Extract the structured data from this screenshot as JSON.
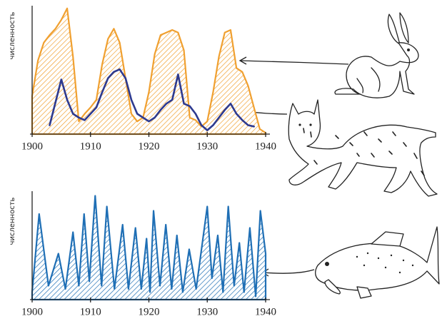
{
  "chart_data": [
    {
      "type": "area",
      "ylabel": "численность",
      "x": [
        1900,
        1901,
        1902,
        1903,
        1904,
        1905,
        1906,
        1907,
        1908,
        1909,
        1910,
        1911,
        1912,
        1913,
        1914,
        1915,
        1916,
        1917,
        1918,
        1919,
        1920,
        1921,
        1922,
        1923,
        1924,
        1925,
        1926,
        1927,
        1928,
        1929,
        1930,
        1931,
        1932,
        1933,
        1934,
        1935,
        1936,
        1937,
        1938,
        1939,
        1940
      ],
      "series": [
        {
          "type": "area",
          "color": "#f0a030",
          "values": [
            30,
            58,
            72,
            78,
            83,
            90,
            99,
            61,
            10,
            16,
            21,
            27,
            55,
            75,
            83,
            72,
            44,
            16,
            10,
            13,
            33,
            63,
            78,
            80,
            82,
            80,
            66,
            13,
            11,
            6,
            10,
            33,
            61,
            80,
            82,
            52,
            49,
            38,
            21,
            4,
            1
          ]
        },
        {
          "type": "line",
          "color": "#2e3a8f",
          "values": [
            null,
            null,
            null,
            7,
            25,
            43,
            27,
            16,
            13,
            11,
            16,
            21,
            33,
            44,
            49,
            51,
            44,
            27,
            16,
            13,
            10,
            13,
            19,
            24,
            27,
            47,
            24,
            22,
            16,
            7,
            3,
            7,
            13,
            19,
            24,
            16,
            11,
            7,
            6,
            null,
            null
          ]
        }
      ],
      "xlim": [
        1900,
        1940
      ],
      "xticks": [
        1900,
        1910,
        1920,
        1930,
        1940
      ],
      "ylim": [
        0,
        100
      ]
    },
    {
      "type": "area",
      "ylabel": "численность",
      "x": [
        1900,
        1901.2,
        1902.8,
        1904.5,
        1905.7,
        1907.0,
        1908.0,
        1908.9,
        1909.8,
        1910.8,
        1911.9,
        1912.8,
        1914.1,
        1915.5,
        1916.5,
        1917.7,
        1918.7,
        1919.6,
        1920.2,
        1920.8,
        1921.9,
        1922.9,
        1923.9,
        1924.8,
        1925.8,
        1926.9,
        1928.1,
        1930.0,
        1930.8,
        1931.8,
        1932.7,
        1933.6,
        1934.6,
        1935.5,
        1936.3,
        1937.3,
        1938.3,
        1939.1,
        1940.0
      ],
      "series": [
        {
          "type": "area",
          "color": "#1f6fb5",
          "values": [
            7,
            80,
            13,
            43,
            10,
            63,
            13,
            80,
            17,
            97,
            13,
            87,
            10,
            70,
            10,
            67,
            10,
            57,
            7,
            83,
            13,
            70,
            10,
            60,
            7,
            47,
            10,
            87,
            20,
            60,
            7,
            87,
            13,
            53,
            7,
            67,
            3,
            83,
            43
          ]
        }
      ],
      "xlim": [
        1900,
        1940
      ],
      "xticks": [
        1900,
        1910,
        1920,
        1930,
        1940
      ],
      "ylim": [
        0,
        100
      ]
    }
  ]
}
